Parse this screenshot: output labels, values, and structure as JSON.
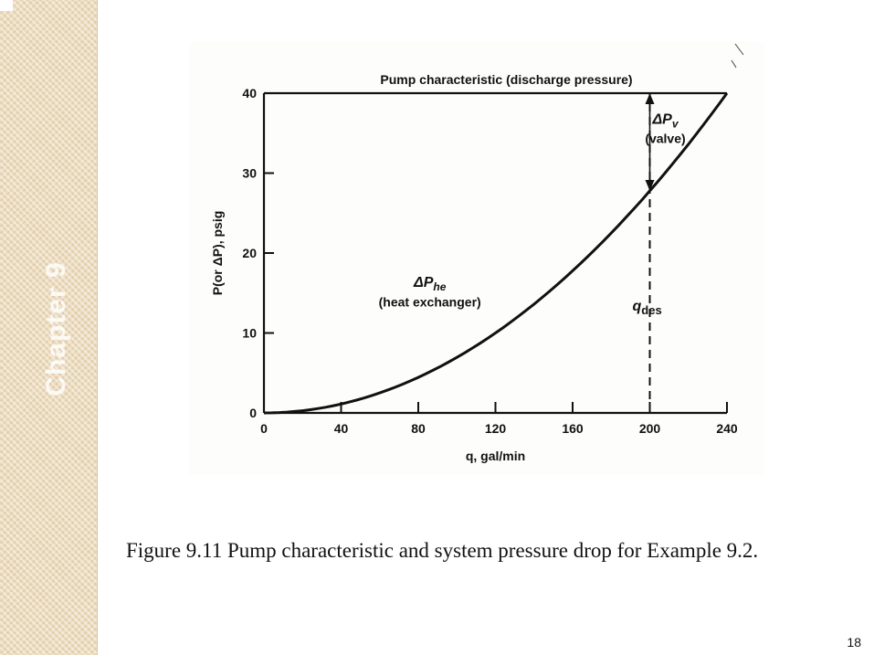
{
  "sidebar": {
    "chapter_label": "Chapter 9"
  },
  "chart_data": {
    "type": "line",
    "title": "Pump characteristic (discharge pressure)",
    "xlabel": "q, gal/min",
    "ylabel": "P(or ΔP), psig",
    "xlim": [
      0,
      240
    ],
    "ylim": [
      0,
      40
    ],
    "x_ticks": [
      "0",
      "40",
      "80",
      "120",
      "160",
      "200",
      "240"
    ],
    "y_ticks": [
      "0",
      "10",
      "20",
      "30",
      "40"
    ],
    "grid": false,
    "series": [
      {
        "kind": "pump-characteristic",
        "x": [
          0,
          240
        ],
        "y": [
          40,
          40
        ]
      },
      {
        "kind": "system-curve",
        "x": [
          0,
          40,
          80,
          120,
          160,
          200,
          240
        ],
        "y": [
          0,
          1.1,
          4.4,
          10,
          17.8,
          27.8,
          40
        ]
      }
    ],
    "vline": {
      "x": 200,
      "y_from": 0,
      "y_to": 40,
      "style": "dashed"
    },
    "annotations": {
      "valve": {
        "symbol": "ΔP",
        "sub": "v",
        "text": "(valve)"
      },
      "heat_exchanger": {
        "symbol": "ΔP",
        "sub": "he",
        "text": "(heat exchanger)"
      },
      "q_des": {
        "symbol": "q",
        "sub": "des"
      }
    }
  },
  "caption": "Figure 9.11 Pump characteristic and system pressure drop for Example 9.2.",
  "page_number": "18"
}
